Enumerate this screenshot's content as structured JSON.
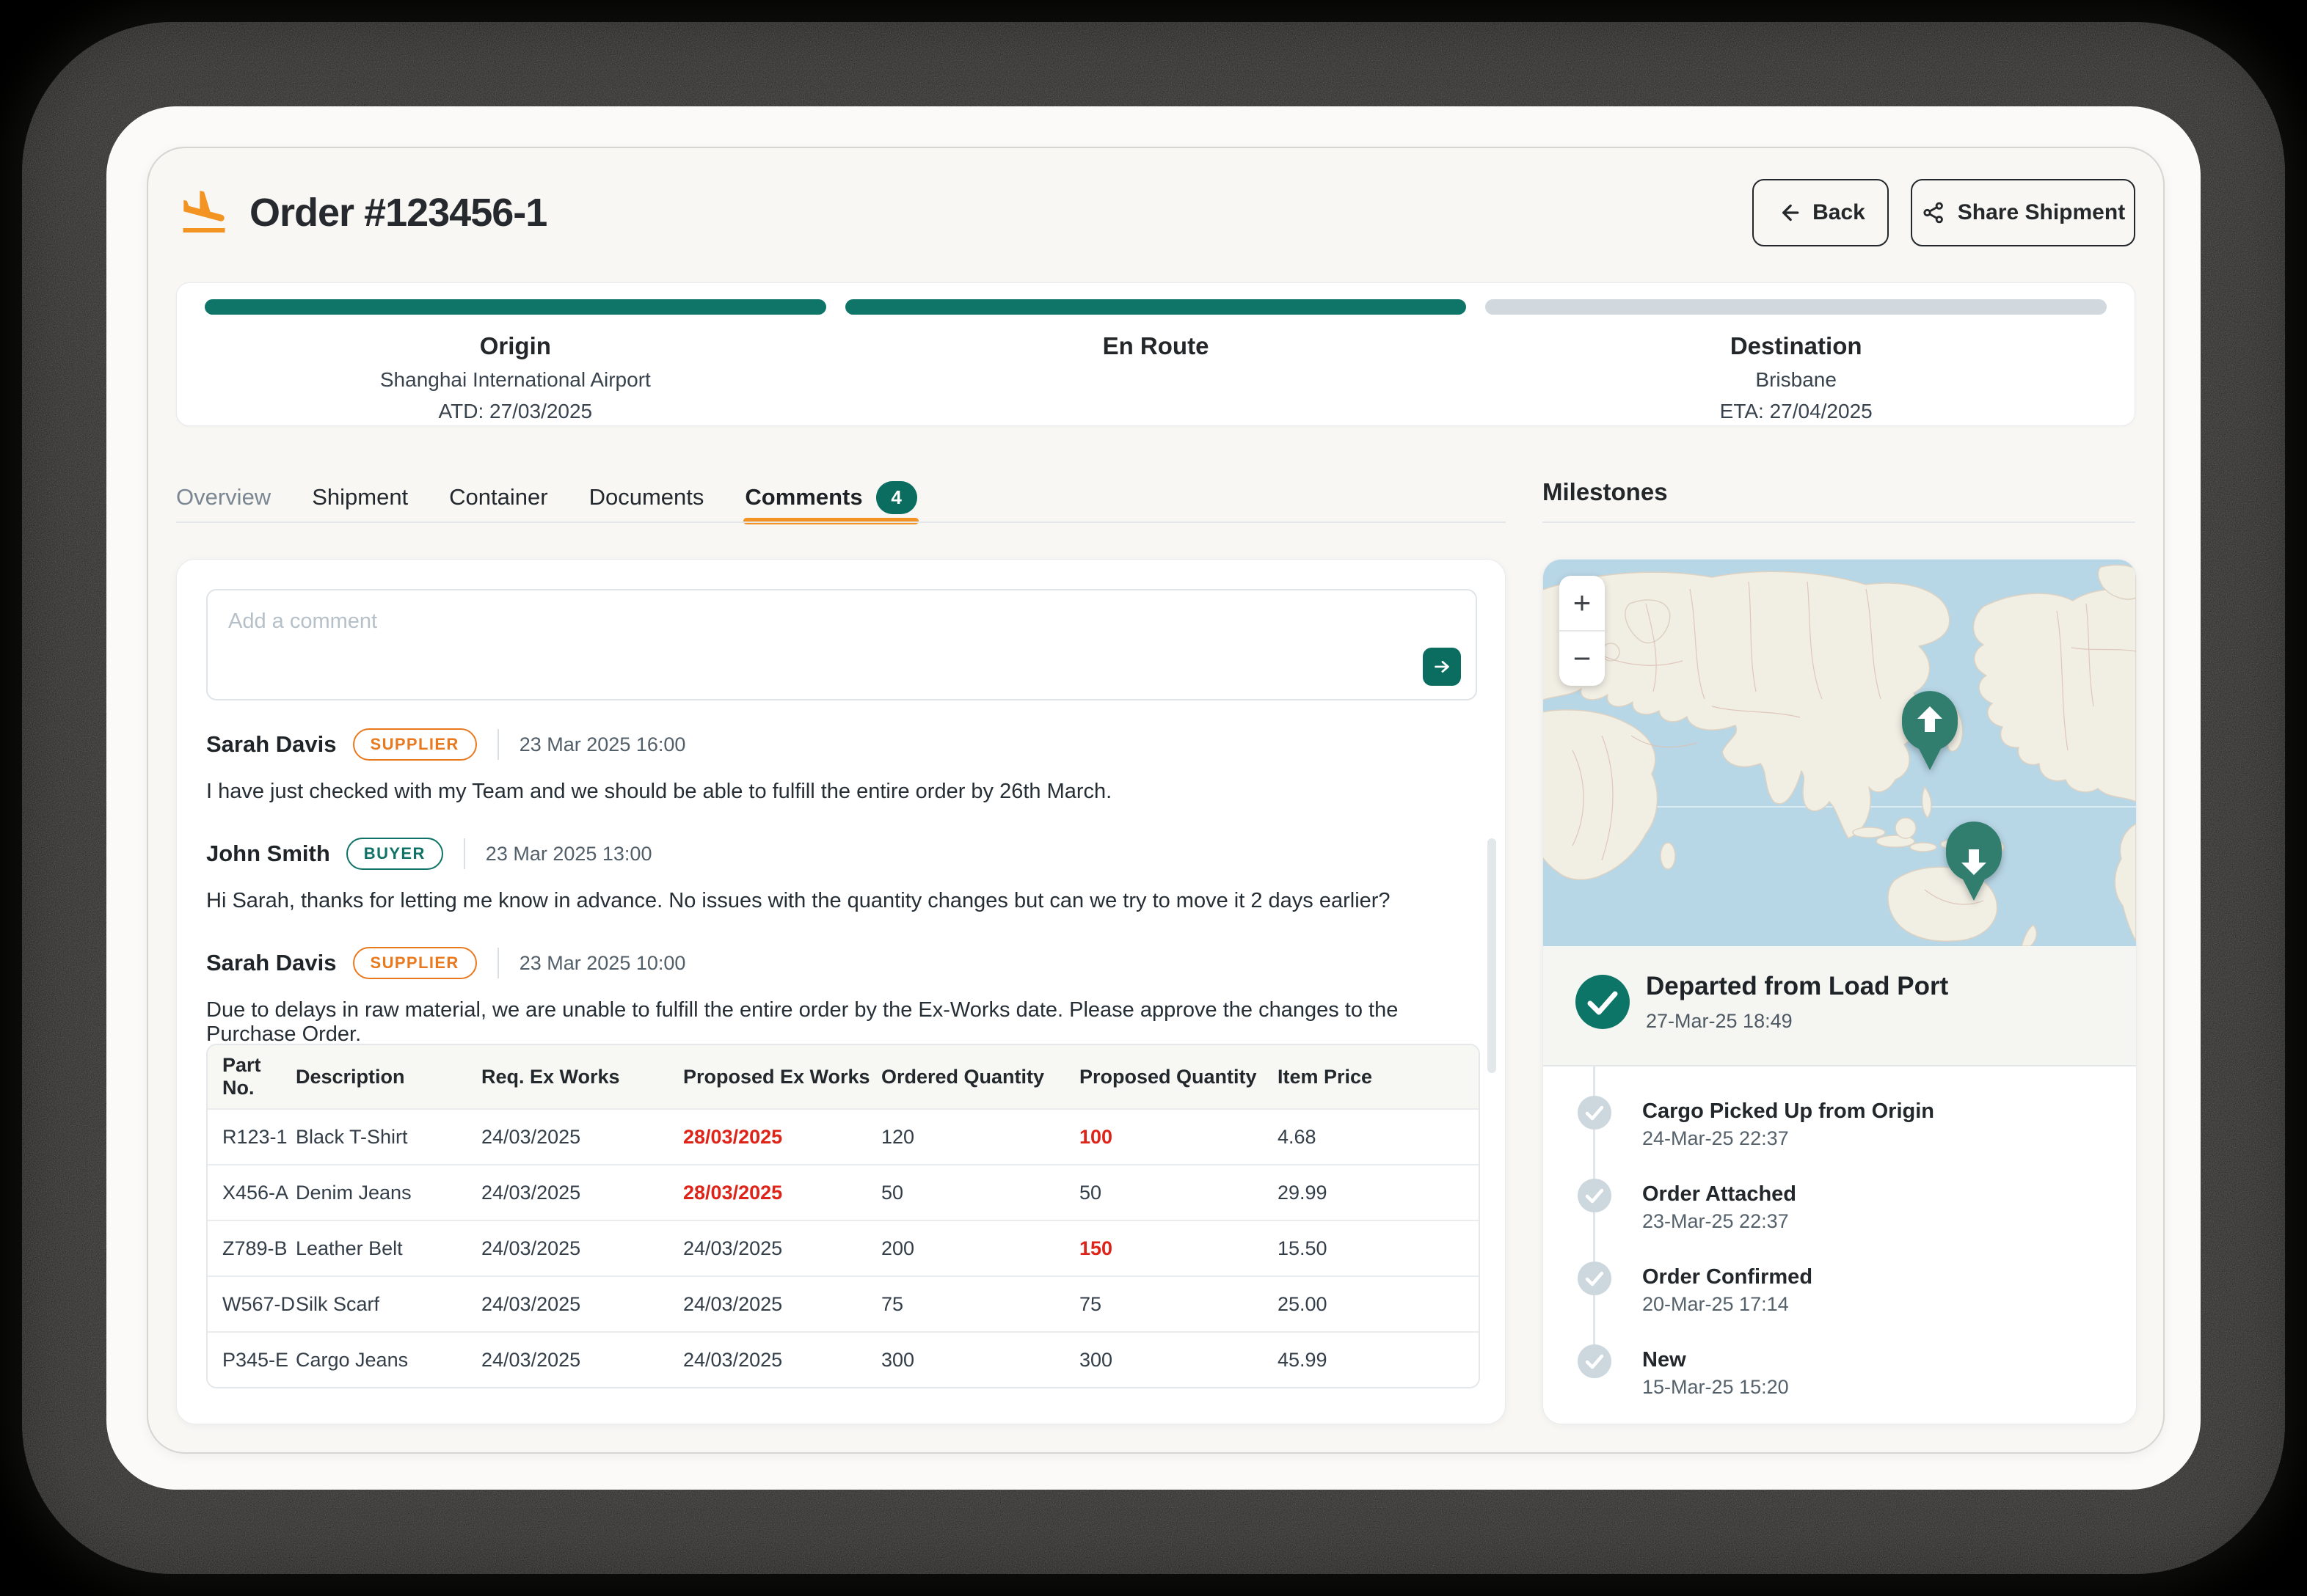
{
  "header": {
    "title": "Order #123456-1",
    "back_label": "Back",
    "share_label": "Share Shipment"
  },
  "progress": {
    "stages": [
      {
        "label": "Origin",
        "sub1": "Shanghai International Airport",
        "sub2": "ATD: 27/03/2025",
        "state": "complete"
      },
      {
        "label": "En Route",
        "sub1": "",
        "sub2": "",
        "state": "complete"
      },
      {
        "label": "Destination",
        "sub1": "Brisbane",
        "sub2": "ETA: 27/04/2025",
        "state": "pending"
      }
    ]
  },
  "tabs": {
    "items": [
      {
        "label": "Overview",
        "muted": true
      },
      {
        "label": "Shipment"
      },
      {
        "label": "Container"
      },
      {
        "label": "Documents"
      },
      {
        "label": "Comments",
        "badge": "4",
        "active": true
      }
    ]
  },
  "comments": {
    "placeholder": "Add a comment",
    "entries": [
      {
        "author": "Sarah Davis",
        "role": "SUPPLIER",
        "role_type": "supplier",
        "time": "23 Mar 2025 16:00",
        "message": "I have just checked with my Team and we should be able to fulfill the entire order by 26th March."
      },
      {
        "author": "John Smith",
        "role": "BUYER",
        "role_type": "buyer",
        "time": "23 Mar 2025 13:00",
        "message": "Hi Sarah, thanks for letting me know in advance. No issues with the quantity changes but can we try to move it 2 days earlier?"
      },
      {
        "author": "Sarah Davis",
        "role": "SUPPLIER",
        "role_type": "supplier",
        "time": "23 Mar 2025 10:00",
        "message": "Due to delays in raw material, we are unable to fulfill the entire order by the Ex-Works date. Please approve the changes to the Purchase Order."
      }
    ]
  },
  "order_table": {
    "columns": [
      "Part No.",
      "Description",
      "Req. Ex Works",
      "Proposed Ex Works",
      "Ordered Quantity",
      "Proposed Quantity",
      "Item Price"
    ],
    "rows": [
      [
        {
          "t": "R123-1"
        },
        {
          "t": "Black T-Shirt"
        },
        {
          "t": "24/03/2025"
        },
        {
          "t": "28/03/2025",
          "alert": true
        },
        {
          "t": "120"
        },
        {
          "t": "100",
          "alert": true
        },
        {
          "t": "4.68"
        }
      ],
      [
        {
          "t": "X456-A"
        },
        {
          "t": "Denim Jeans"
        },
        {
          "t": "24/03/2025"
        },
        {
          "t": "28/03/2025",
          "alert": true
        },
        {
          "t": "50"
        },
        {
          "t": "50"
        },
        {
          "t": "29.99"
        }
      ],
      [
        {
          "t": "Z789-B"
        },
        {
          "t": "Leather Belt"
        },
        {
          "t": "24/03/2025"
        },
        {
          "t": "24/03/2025"
        },
        {
          "t": "200"
        },
        {
          "t": "150",
          "alert": true
        },
        {
          "t": "15.50"
        }
      ],
      [
        {
          "t": "W567-D"
        },
        {
          "t": "Silk Scarf"
        },
        {
          "t": "24/03/2025"
        },
        {
          "t": "24/03/2025"
        },
        {
          "t": "75"
        },
        {
          "t": "75"
        },
        {
          "t": "25.00"
        }
      ],
      [
        {
          "t": "P345-E"
        },
        {
          "t": "Cargo Jeans"
        },
        {
          "t": "24/03/2025"
        },
        {
          "t": "24/03/2025"
        },
        {
          "t": "300"
        },
        {
          "t": "300"
        },
        {
          "t": "45.99"
        }
      ]
    ]
  },
  "milestones": {
    "heading": "Milestones",
    "map": {
      "zoom_in": "+",
      "zoom_out": "−"
    },
    "current": {
      "title": "Departed from Load Port",
      "time": "27-Mar-25 18:49"
    },
    "history": [
      {
        "title": "Cargo Picked Up from Origin",
        "time": "24-Mar-25 22:37"
      },
      {
        "title": "Order Attached",
        "time": "23-Mar-25 22:37"
      },
      {
        "title": "Order Confirmed",
        "time": "20-Mar-25 17:14"
      },
      {
        "title": "New",
        "time": "15-Mar-25 15:20"
      }
    ]
  },
  "colors": {
    "accent_teal": "#0b6d60",
    "progress_teal": "#0e7568",
    "accent_orange": "#f39322",
    "alert_red": "#de2419",
    "supplier_orange": "#e8791f",
    "buyer_teal": "#0e7366",
    "map_ocean": "#b7d6e6",
    "map_land": "#f1eee4"
  }
}
